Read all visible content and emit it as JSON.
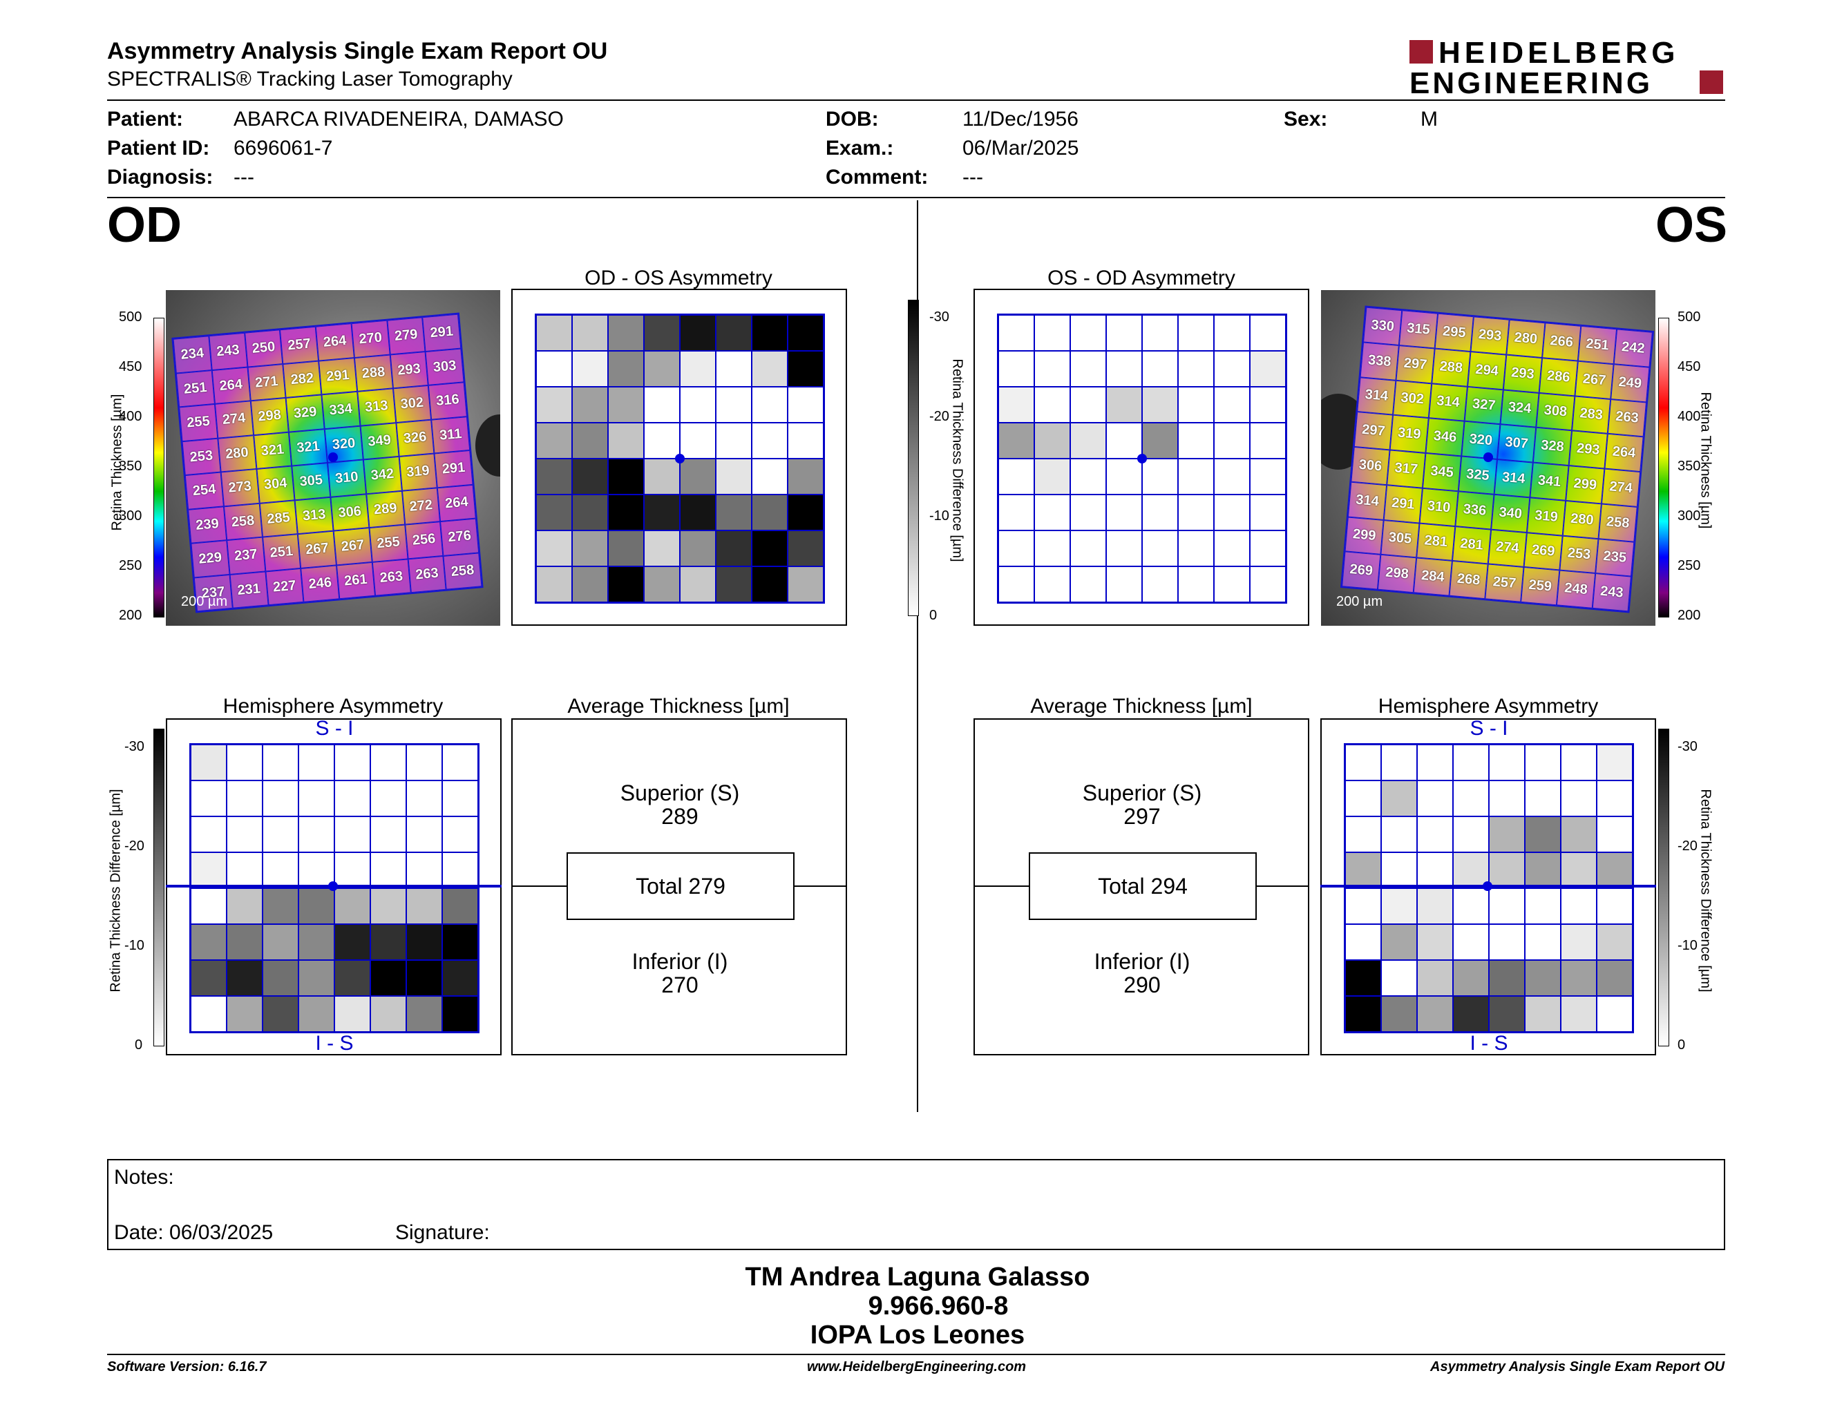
{
  "header": {
    "title": "Asymmetry Analysis Single Exam Report OU",
    "subtitle": "SPECTRALIS® Tracking Laser Tomography",
    "logo_line1": "HEIDELBERG",
    "logo_line2": "ENGINEERING"
  },
  "patient": {
    "patient_label": "Patient:",
    "patient_value": "ABARCA RIVADENEIRA, DAMASO",
    "id_label": "Patient ID:",
    "id_value": "6696061-7",
    "diag_label": "Diagnosis:",
    "diag_value": "---",
    "dob_label": "DOB:",
    "dob_value": "11/Dec/1956",
    "exam_label": "Exam.:",
    "exam_value": "06/Mar/2025",
    "comment_label": "Comment:",
    "comment_value": "---",
    "sex_label": "Sex:",
    "sex_value": "M"
  },
  "eyes": {
    "od": "OD",
    "os": "OS"
  },
  "titles": {
    "od_asym": "OD - OS Asymmetry",
    "os_asym": "OS - OD Asymmetry",
    "hemi": "Hemisphere Asymmetry",
    "avg": "Average Thickness [µm]",
    "s_i": "S - I",
    "i_s": "I - S"
  },
  "axes": {
    "thickness_label": "Retina Thickness [µm]",
    "diff_label": "Retina Thickness Difference [µm]",
    "thickness_ticks": [
      "500",
      "450",
      "400",
      "350",
      "300",
      "250",
      "200"
    ],
    "diff_ticks": [
      "-30",
      "-20",
      "-10",
      "0"
    ],
    "scale": "200 µm"
  },
  "od_thickness": [
    [
      "234",
      "243",
      "250",
      "257",
      "264",
      "270",
      "279",
      "291"
    ],
    [
      "251",
      "264",
      "271",
      "282",
      "291",
      "288",
      "293",
      "303"
    ],
    [
      "255",
      "274",
      "298",
      "329",
      "334",
      "313",
      "302",
      "316"
    ],
    [
      "253",
      "280",
      "321",
      "321",
      "320",
      "349",
      "326",
      "311"
    ],
    [
      "254",
      "273",
      "304",
      "305",
      "310",
      "342",
      "319",
      "291"
    ],
    [
      "239",
      "258",
      "285",
      "313",
      "306",
      "289",
      "272",
      "264"
    ],
    [
      "229",
      "237",
      "251",
      "267",
      "267",
      "255",
      "256",
      "276"
    ],
    [
      "237",
      "231",
      "227",
      "246",
      "261",
      "263",
      "263",
      "258"
    ]
  ],
  "os_thickness": [
    [
      "330",
      "315",
      "295",
      "293",
      "280",
      "266",
      "251",
      "242"
    ],
    [
      "338",
      "297",
      "288",
      "294",
      "293",
      "286",
      "267",
      "249"
    ],
    [
      "314",
      "302",
      "314",
      "327",
      "324",
      "308",
      "283",
      "263"
    ],
    [
      "297",
      "319",
      "346",
      "320",
      "307",
      "328",
      "293",
      "264"
    ],
    [
      "306",
      "317",
      "345",
      "325",
      "314",
      "341",
      "299",
      "274"
    ],
    [
      "314",
      "291",
      "310",
      "336",
      "340",
      "319",
      "280",
      "258"
    ],
    [
      "299",
      "305",
      "281",
      "281",
      "274",
      "269",
      "253",
      "235"
    ],
    [
      "269",
      "298",
      "284",
      "268",
      "257",
      "259",
      "248",
      "243"
    ]
  ],
  "od_asym_grid": [
    [
      "#c8c8c8",
      "#c8c8c8",
      "#888",
      "#444",
      "#141414",
      "#303030",
      "#000",
      "#000"
    ],
    [
      "#fff",
      "#f0f0f0",
      "#888",
      "#a8a8a8",
      "#ececec",
      "#fff",
      "#dcdcdc",
      "#000"
    ],
    [
      "#d4d4d4",
      "#a0a0a0",
      "#a8a8a8",
      "#fff",
      "#fff",
      "#fff",
      "#fff",
      "#fff"
    ],
    [
      "#a8a8a8",
      "#888",
      "#c4c4c4",
      "#fff",
      "#fff",
      "#fff",
      "#fff",
      "#fff"
    ],
    [
      "#606060",
      "#303030",
      "#000",
      "#c4c4c4",
      "#888",
      "#e4e4e4",
      "#fff",
      "#909090"
    ],
    [
      "#606060",
      "#505050",
      "#000",
      "#202020",
      "#141414",
      "#707070",
      "#6a6a6a",
      "#000"
    ],
    [
      "#d4d4d4",
      "#a0a0a0",
      "#707070",
      "#d4d4d4",
      "#909090",
      "#303030",
      "#000",
      "#404040"
    ],
    [
      "#c8c8c8",
      "#8c8c8c",
      "#000",
      "#a0a0a0",
      "#c8c8c8",
      "#404040",
      "#000",
      "#b0b0b0"
    ]
  ],
  "os_asym_grid": [
    [
      "#fff",
      "#fff",
      "#fff",
      "#fff",
      "#fff",
      "#fff",
      "#fff",
      "#fff"
    ],
    [
      "#fff",
      "#fff",
      "#fff",
      "#fff",
      "#fff",
      "#fff",
      "#fff",
      "#ececec"
    ],
    [
      "#f0f0f0",
      "#fff",
      "#fff",
      "#d0d0d0",
      "#dcdcdc",
      "#fff",
      "#fff",
      "#fff"
    ],
    [
      "#a0a0a0",
      "#c4c4c4",
      "#e4e4e4",
      "#fff",
      "#909090",
      "#fff",
      "#fff",
      "#fff"
    ],
    [
      "#fff",
      "#e8e8e8",
      "#fff",
      "#fff",
      "#fff",
      "#fff",
      "#fff",
      "#fff"
    ],
    [
      "#fff",
      "#fff",
      "#fff",
      "#fff",
      "#fff",
      "#fff",
      "#fff",
      "#fff"
    ],
    [
      "#fff",
      "#fff",
      "#fff",
      "#fff",
      "#fff",
      "#fff",
      "#fff",
      "#fff"
    ],
    [
      "#fff",
      "#fff",
      "#fff",
      "#fff",
      "#fff",
      "#fff",
      "#fff",
      "#fff"
    ]
  ],
  "od_hemi_grid": [
    [
      "#e8e8e8",
      "#fff",
      "#fff",
      "#fff",
      "#fff",
      "#fff",
      "#fff",
      "#fff"
    ],
    [
      "#fff",
      "#fff",
      "#fff",
      "#fff",
      "#fff",
      "#fff",
      "#fff",
      "#fff"
    ],
    [
      "#fff",
      "#fff",
      "#fff",
      "#fff",
      "#fff",
      "#fff",
      "#fff",
      "#fff"
    ],
    [
      "#f0f0f0",
      "#fff",
      "#fff",
      "#fff",
      "#fff",
      "#fff",
      "#fff",
      "#fff"
    ],
    [
      "#fff",
      "#c4c4c4",
      "#808080",
      "#7a7a7a",
      "#b0b0b0",
      "#c8c8c8",
      "#c0c0c0",
      "#707070"
    ],
    [
      "#888",
      "#787878",
      "#a0a0a0",
      "#888",
      "#202020",
      "#303030",
      "#141414",
      "#000"
    ],
    [
      "#505050",
      "#202020",
      "#707070",
      "#909090",
      "#404040",
      "#000",
      "#000",
      "#202020"
    ],
    [
      "#fff",
      "#a8a8a8",
      "#505050",
      "#a0a0a0",
      "#e4e4e4",
      "#c8c8c8",
      "#808080",
      "#000"
    ]
  ],
  "os_hemi_grid": [
    [
      "#fff",
      "#fff",
      "#fff",
      "#fff",
      "#fff",
      "#fff",
      "#fff",
      "#f0f0f0"
    ],
    [
      "#fff",
      "#c4c4c4",
      "#fff",
      "#fff",
      "#fff",
      "#fff",
      "#fff",
      "#fff"
    ],
    [
      "#fff",
      "#fff",
      "#fff",
      "#fff",
      "#b4b4b4",
      "#808080",
      "#b8b8b8",
      "#fff"
    ],
    [
      "#b0b0b0",
      "#fff",
      "#fff",
      "#e0e0e0",
      "#c8c8c8",
      "#a0a0a0",
      "#d0d0d0",
      "#a8a8a8"
    ],
    [
      "#fff",
      "#f0f0f0",
      "#e8e8e8",
      "#fff",
      "#fff",
      "#fff",
      "#fff",
      "#fff"
    ],
    [
      "#fff",
      "#a8a8a8",
      "#d8d8d8",
      "#fff",
      "#fff",
      "#fff",
      "#eaeaea",
      "#d0d0d0"
    ],
    [
      "#000",
      "#fff",
      "#c8c8c8",
      "#a0a0a0",
      "#707070",
      "#909090",
      "#a0a0a0",
      "#909090"
    ],
    [
      "#000",
      "#808080",
      "#a8a8a8",
      "#303030",
      "#505050",
      "#d0d0d0",
      "#e0e0e0",
      "#fff"
    ]
  ],
  "od_avg": {
    "sup_label": "Superior (S)",
    "sup_value": "289",
    "total": "Total 279",
    "inf_label": "Inferior (I)",
    "inf_value": "270"
  },
  "os_avg": {
    "sup_label": "Superior (S)",
    "sup_value": "297",
    "total": "Total 294",
    "inf_label": "Inferior (I)",
    "inf_value": "290"
  },
  "notes": {
    "label": "Notes:",
    "date": "Date: 06/03/2025",
    "signature": "Signature:"
  },
  "signer": {
    "name": "TM Andrea Laguna Galasso",
    "id": "9.966.960-8",
    "org": "IOPA Los Leones"
  },
  "footer": {
    "version": "Software Version: 6.16.7",
    "url": "www.HeidelbergEngineering.com",
    "report": "Asymmetry Analysis Single Exam Report OU"
  }
}
